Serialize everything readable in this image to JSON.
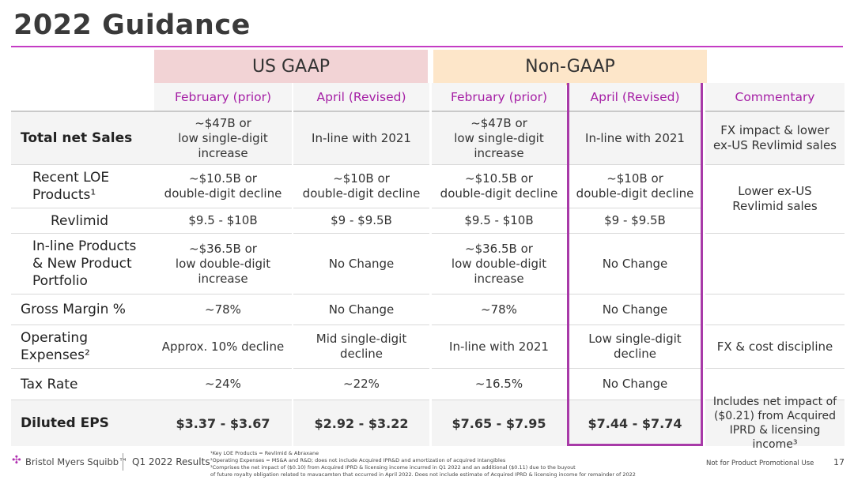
{
  "title": "2022 Guidance",
  "groups": {
    "gaap": "US GAAP",
    "non_gaap": "Non-GAAP"
  },
  "subheaders": [
    "February (prior)",
    "April (Revised)",
    "February (prior)",
    "April (Revised)",
    "Commentary"
  ],
  "rows": [
    {
      "label": "Total net Sales",
      "cells": [
        "~$47B or\nlow single-digit\nincrease",
        "In-line with 2021",
        "~$47B or\nlow single-digit\nincrease",
        "In-line with 2021"
      ]
    },
    {
      "label": "Recent LOE\nProducts¹",
      "cells": [
        "~$10.5B or\ndouble-digit decline",
        "~$10B or\ndouble-digit decline",
        "~$10.5B or\ndouble-digit decline",
        "~$10B or\ndouble-digit decline"
      ]
    },
    {
      "label": "Revlimid",
      "cells": [
        "$9.5 - $10B",
        "$9 - $9.5B",
        "$9.5 - $10B",
        "$9 - $9.5B"
      ]
    },
    {
      "label": "In-line Products\n& New Product\nPortfolio",
      "cells": [
        "~$36.5B or\nlow double-digit\nincrease",
        "No Change",
        "~$36.5B or\nlow double-digit\nincrease",
        "No Change"
      ]
    },
    {
      "label": "Gross Margin %",
      "cells": [
        "~78%",
        "No Change",
        "~78%",
        "No Change"
      ]
    },
    {
      "label": "Operating\nExpenses²",
      "cells": [
        "Approx. 10% decline",
        "Mid single-digit\ndecline",
        "In-line with 2021",
        "Low single-digit\ndecline"
      ]
    },
    {
      "label": "Tax Rate",
      "cells": [
        "~24%",
        "~22%",
        "~16.5%",
        "No Change"
      ]
    },
    {
      "label": "Diluted EPS",
      "cells": [
        "$3.37 - $3.67",
        "$2.92 - $3.22",
        "$7.65 - $7.95",
        "$7.44 - $7.74"
      ]
    }
  ],
  "commentary": {
    "sales": "FX impact & lower\nex-US Revlimid sales",
    "loe": "Lower ex-US\nRevlimid sales",
    "opex": "FX & cost discipline",
    "eps": "Includes net impact of\n($0.21) from Acquired\nIPRD & licensing income³"
  },
  "footer": {
    "company": "Bristol Myers Squibb™",
    "report": "Q1 2022 Results",
    "note1": "¹Key LOE Products = Revlimid & Abraxane",
    "note2": "²Operating Expenses = MS&A and R&D; does not include Acquired IPR&D and amortization of acquired intangibles",
    "note3": "³Comprises the net impact of ($0.10) from Acquired IPRD & licensing income incurred in Q1 2022 and an additional ($0.11) due to the buyout",
    "note4": "of future royalty obligation related to mavacamten that occurred in April 2022. Does not include estimate of Acquired IPRD & licensing income for remainder of 2022",
    "disclaimer": "Not for Product Promotional Use",
    "page": "17"
  },
  "colors": {
    "accent": "#a51fa5",
    "gaap_header": "#f2d3d5",
    "non_gaap_header": "#fde6c9"
  }
}
